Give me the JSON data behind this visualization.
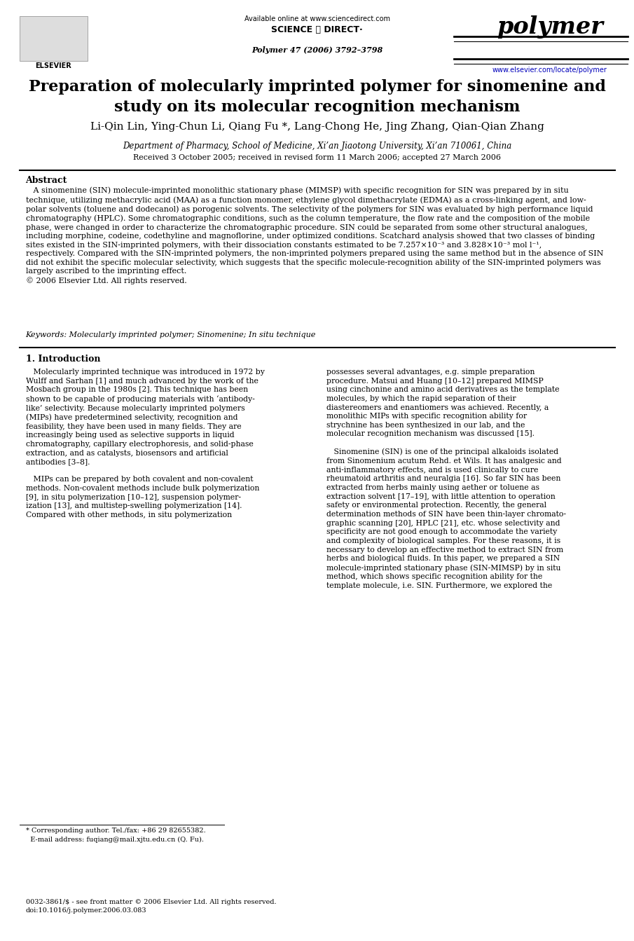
{
  "page_width": 9.92,
  "page_height": 13.23,
  "bg_color": "#ffffff",
  "header": {
    "available_online": "Available online at www.sciencedirect.com",
    "journal_name": "polymer",
    "journal_ref": "Polymer 47 (2006) 3792–3798",
    "journal_url": "www.elsevier.com/locate/polymer",
    "elsevier_text": "ELSEVIER"
  },
  "title": "Preparation of molecularly imprinted polymer for sinomenine and\nstudy on its molecular recognition mechanism",
  "authors": "Li-Qin Lin, Ying-Chun Li, Qiang Fu *, Lang-Chong He, Jing Zhang, Qian-Qian Zhang",
  "affiliation": "Department of Pharmacy, School of Medicine, Xi’an Jiaotong University, Xi’an 710061, China",
  "received": "Received 3 October 2005; received in revised form 11 March 2006; accepted 27 March 2006",
  "abstract_heading": "Abstract",
  "abstract_text": "   A sinomenine (SIN) molecule-imprinted monolithic stationary phase (MIMSP) with specific recognition for SIN was prepared by in situ\ntechnique, utilizing methacrylic acid (MAA) as a function monomer, ethylene glycol dimethacrylate (EDMA) as a cross-linking agent, and low-\npolar solvents (toluene and dodecanol) as porogenic solvents. The selectivity of the polymers for SIN was evaluated by high performance liquid\nchromatography (HPLC). Some chromatographic conditions, such as the column temperature, the flow rate and the composition of the mobile\nphase, were changed in order to characterize the chromatographic procedure. SIN could be separated from some other structural analogues,\nincluding morphine, codeine, codethyline and magnoflorine, under optimized conditions. Scatchard analysis showed that two classes of binding\nsites existed in the SIN-imprinted polymers, with their dissociation constants estimated to be 7.257×10⁻³ and 3.828×10⁻³ mol l⁻¹,\nrespectively. Compared with the SIN-imprinted polymers, the non-imprinted polymers prepared using the same method but in the absence of SIN\ndid not exhibit the specific molecular selectivity, which suggests that the specific molecule-recognition ability of the SIN-imprinted polymers was\nlargely ascribed to the imprinting effect.\n© 2006 Elsevier Ltd. All rights reserved.",
  "keywords_label": "Keywords",
  "keywords_text": "Molecularly imprinted polymer; Sinomenine; In situ technique",
  "section1_heading": "1. Introduction",
  "col1_text": "   Molecularly imprinted technique was introduced in 1972 by\nWulff and Sarhan [1] and much advanced by the work of the\nMosbach group in the 1980s [2]. This technique has been\nshown to be capable of producing materials with ‘antibody-\nlike’ selectivity. Because molecularly imprinted polymers\n(MIPs) have predetermined selectivity, recognition and\nfeasibility, they have been used in many fields. They are\nincreasingly being used as selective supports in liquid\nchromatography, capillary electrophoresis, and solid-phase\nextraction, and as catalysts, biosensors and artificial\nantibodies [3–8].\n\n   MIPs can be prepared by both covalent and non-covalent\nmethods. Non-covalent methods include bulk polymerization\n[9], in situ polymerization [10–12], suspension polymer-\nization [13], and multistep-swelling polymerization [14].\nCompared with other methods, in situ polymerization",
  "col2_text": "possesses several advantages, e.g. simple preparation\nprocedure. Matsui and Huang [10–12] prepared MIMSP\nusing cinchonine and amino acid derivatives as the template\nmolecules, by which the rapid separation of their\ndiastereomers and enantiomers was achieved. Recently, a\nmonolithic MIPs with specific recognition ability for\nstrychnine has been synthesized in our lab, and the\nmolecular recognition mechanism was discussed [15].\n\n   Sinomenine (SIN) is one of the principal alkaloids isolated\nfrom Sinomenium acutum Rehd. et Wils. It has analgesic and\nanti-inflammatory effects, and is used clinically to cure\nrheumatoid arthritis and neuralgia [16]. So far SIN has been\nextracted from herbs mainly using aether or toluene as\nextraction solvent [17–19], with little attention to operation\nsafety or environmental protection. Recently, the general\ndetermination methods of SIN have been thin-layer chromato-\ngraphic scanning [20], HPLC [21], etc. whose selectivity and\nspecificity are not good enough to accommodate the variety\nand complexity of biological samples. For these reasons, it is\nnecessary to develop an effective method to extract SIN from\nherbs and biological fluids. In this paper, we prepared a SIN\nmolecule-imprinted stationary phase (SIN-MIMSP) by in situ\nmethod, which shows specific recognition ability for the\ntemplate molecule, i.e. SIN. Furthermore, we explored the",
  "footnote_text": "* Corresponding author. Tel./fax: +86 29 82655382.\n  E-mail address: fuqiang@mail.xjtu.edu.cn (Q. Fu).",
  "bottom_text": "0032-3861/$ - see front matter © 2006 Elsevier Ltd. All rights reserved.\ndoi:10.1016/j.polymer.2006.03.083"
}
